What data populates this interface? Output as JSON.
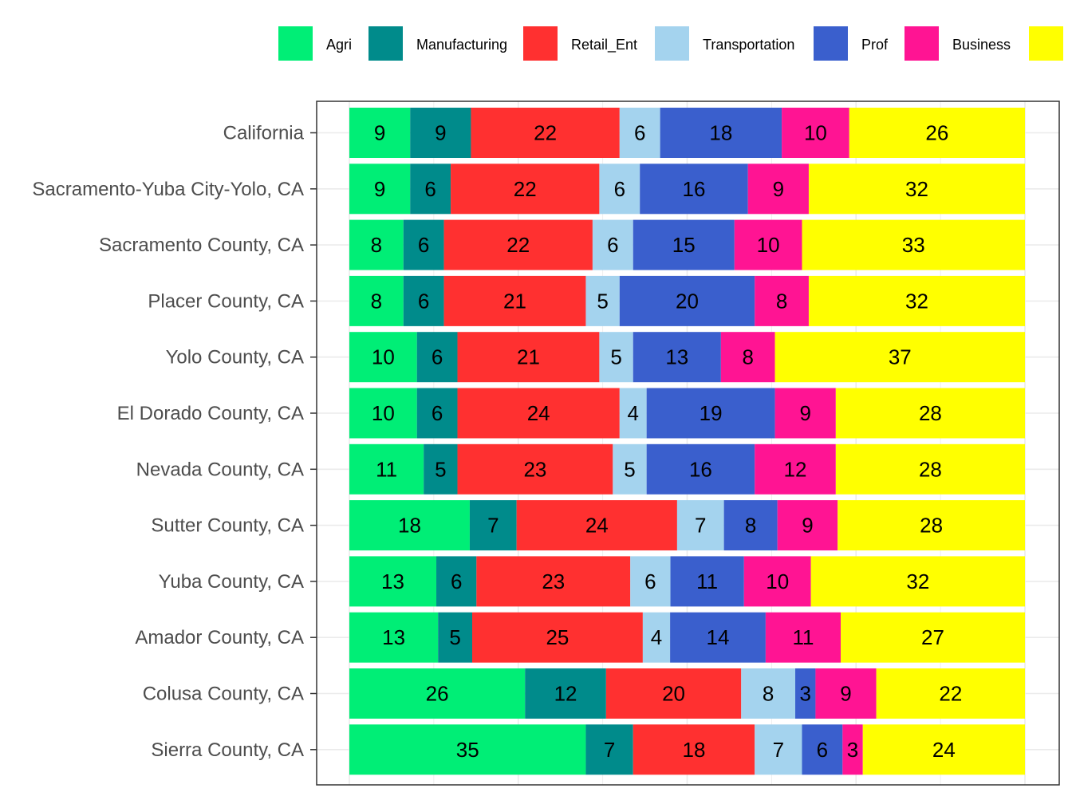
{
  "chart_data": {
    "type": "bar",
    "orientation": "horizontal",
    "stacking": "percent",
    "title": "",
    "xlabel": "",
    "ylabel": "",
    "xlim": [
      0,
      100
    ],
    "grid": true,
    "legend_position": "top",
    "categories": [
      "California",
      "Sacramento-Yuba City-Yolo, CA",
      "Sacramento County, CA",
      "Placer County, CA",
      "Yolo County, CA",
      "El Dorado County, CA",
      "Nevada County, CA",
      "Sutter County, CA",
      "Yuba County, CA",
      "Amador County, CA",
      "Colusa County, CA",
      "Sierra County, CA"
    ],
    "series": [
      {
        "name": "Agri",
        "color": "#00EE76",
        "values": [
          9,
          9,
          8,
          8,
          10,
          10,
          11,
          18,
          13,
          13,
          26,
          35
        ]
      },
      {
        "name": "Manufacturing",
        "color": "#008B8B",
        "values": [
          9,
          6,
          6,
          6,
          6,
          6,
          5,
          7,
          6,
          5,
          12,
          7
        ]
      },
      {
        "name": "Retail_Ent",
        "color": "#FF3030",
        "values": [
          22,
          22,
          22,
          21,
          21,
          24,
          23,
          24,
          23,
          25,
          20,
          18
        ]
      },
      {
        "name": "Transportation",
        "color": "#A4D3EE",
        "values": [
          6,
          6,
          6,
          5,
          5,
          4,
          5,
          7,
          6,
          4,
          8,
          7
        ]
      },
      {
        "name": "Prof",
        "color": "#3A5FCD",
        "values": [
          18,
          16,
          15,
          20,
          13,
          19,
          16,
          8,
          11,
          14,
          3,
          6
        ]
      },
      {
        "name": "Business",
        "color": "#FF1493",
        "values": [
          10,
          9,
          10,
          8,
          8,
          9,
          12,
          9,
          10,
          11,
          9,
          3
        ]
      },
      {
        "name": "",
        "color": "#FFFF00",
        "values": [
          26,
          32,
          33,
          32,
          37,
          28,
          28,
          28,
          32,
          27,
          22,
          24
        ]
      }
    ]
  }
}
